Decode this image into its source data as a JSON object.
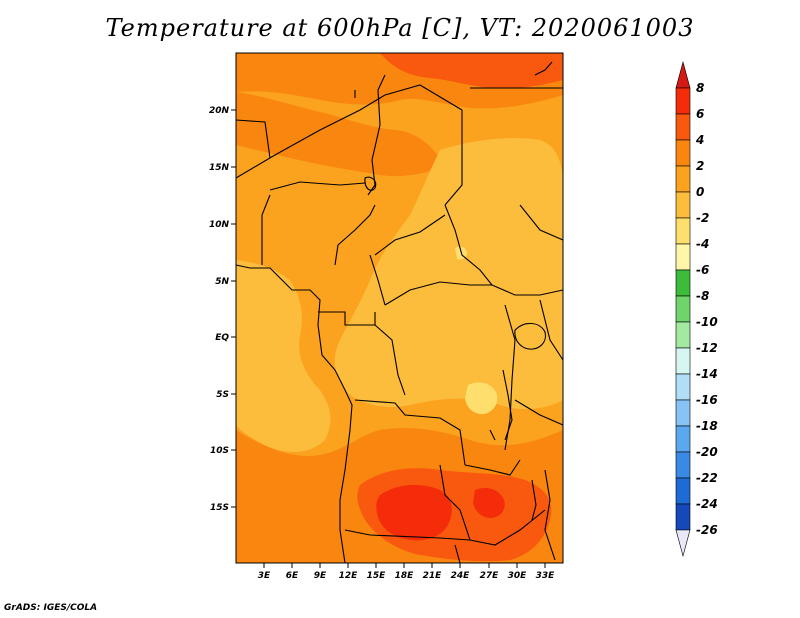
{
  "title": "Temperature at 600hPa [C], VT: 2020061003",
  "credit": "GrADS: IGES/COLA",
  "map": {
    "lat_labels": [
      "20N",
      "15N",
      "10N",
      "5N",
      "EQ",
      "5S",
      "10S",
      "15S"
    ],
    "lon_labels": [
      "3E",
      "6E",
      "9E",
      "12E",
      "15E",
      "18E",
      "21E",
      "24E",
      "27E",
      "30E",
      "33E"
    ],
    "lon_range": [
      0,
      35
    ],
    "lat_range": [
      -20,
      25
    ]
  },
  "colorbar": {
    "labels": [
      "8",
      "6",
      "4",
      "2",
      "0",
      "-2",
      "-4",
      "-6",
      "-8",
      "-10",
      "-12",
      "-14",
      "-16",
      "-18",
      "-20",
      "-22",
      "-24",
      "-26"
    ],
    "colors": [
      "#f42c0a",
      "#f8590f",
      "#f9860f",
      "#fba21f",
      "#fcbc3c",
      "#fedf6e",
      "#fff6aa",
      "#3dbb3b",
      "#6fd56b",
      "#a3e9a0",
      "#d6f6f2",
      "#b0def7",
      "#87c4f5",
      "#5ca8ef",
      "#3a8ae5",
      "#1e6bd6",
      "#1549ba",
      "#0c1f7a"
    ],
    "top_color": "#d51a14",
    "bottom_color": "#e8e8f8"
  },
  "field_colors": {
    "deep_orange": "#f9860f",
    "orange": "#fba21f",
    "light_orange": "#fcbc3c",
    "pale_yellow": "#fedf6e",
    "red_orange": "#f8590f",
    "red": "#f42c0a"
  }
}
